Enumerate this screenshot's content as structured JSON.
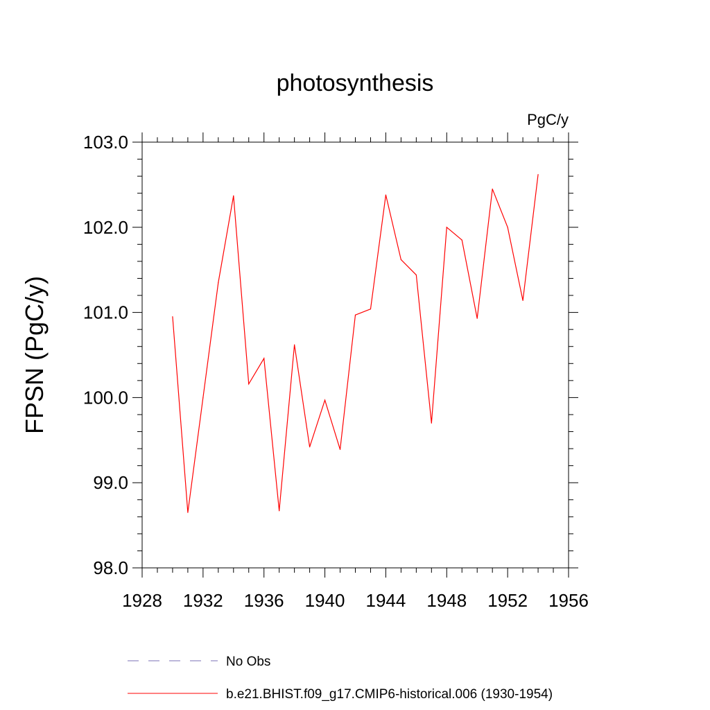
{
  "chart_data": {
    "type": "line",
    "title": "photosynthesis",
    "units": "PgC/y",
    "xlabel": "",
    "ylabel": "FPSN  (PgC/y)",
    "xlim": [
      1928,
      1956
    ],
    "ylim": [
      98.0,
      103.0
    ],
    "x_ticks": [
      "1928",
      "1932",
      "1936",
      "1940",
      "1944",
      "1948",
      "1952",
      "1956"
    ],
    "y_ticks": [
      "98.0",
      "99.0",
      "100.0",
      "101.0",
      "102.0",
      "103.0"
    ],
    "grid": false,
    "legend_position": "bottom",
    "series": [
      {
        "name": "b.e21.BHIST.f09_g17.CMIP6-historical.006 (1930-1954)",
        "color": "#ff0000",
        "style": "solid",
        "x": [
          1930,
          1931,
          1932,
          1933,
          1934,
          1935,
          1936,
          1937,
          1938,
          1939,
          1940,
          1941,
          1942,
          1943,
          1944,
          1945,
          1946,
          1947,
          1948,
          1949,
          1950,
          1951,
          1952,
          1953,
          1954
        ],
        "values": [
          100.95,
          98.65,
          100.0,
          101.35,
          102.37,
          100.16,
          100.46,
          98.67,
          100.62,
          99.42,
          99.97,
          99.39,
          100.97,
          101.04,
          102.38,
          101.62,
          101.44,
          99.7,
          102.0,
          101.85,
          100.93,
          102.45,
          102.0,
          101.14,
          102.62
        ]
      }
    ],
    "legend": [
      {
        "label": "No Obs",
        "color": "#7a6fb5",
        "style": "dashed"
      },
      {
        "label": "b.e21.BHIST.f09_g17.CMIP6-historical.006 (1930-1954)",
        "color": "#ff0000",
        "style": "solid"
      }
    ]
  }
}
